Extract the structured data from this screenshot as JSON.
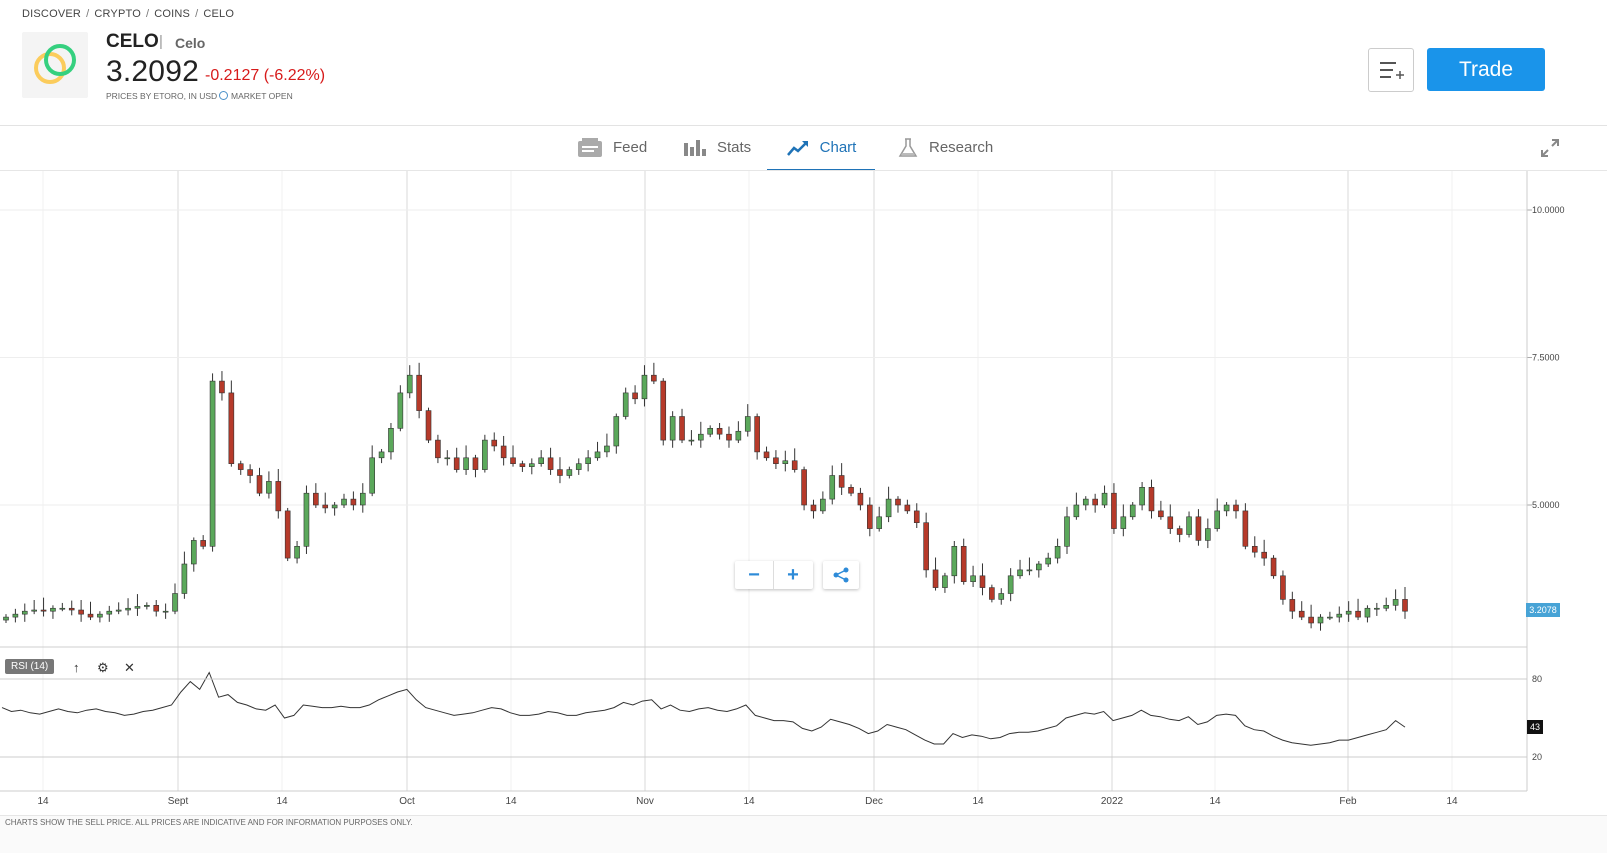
{
  "breadcrumb": [
    "DISCOVER",
    "CRYPTO",
    "COINS",
    "CELO"
  ],
  "instrument": {
    "symbol": "CELO",
    "separator": "|",
    "name": "Celo",
    "price": "3.2092",
    "change": "-0.2127 (-6.22%)",
    "price_note": "PRICES BY ETORO, IN USD",
    "market_status": "MARKET OPEN"
  },
  "actions": {
    "trade_label": "Trade",
    "watchlist_icon": "add-to-watchlist-icon"
  },
  "tabs": [
    {
      "label": "Feed",
      "icon": "feed-icon"
    },
    {
      "label": "Stats",
      "icon": "stats-icon"
    },
    {
      "label": "Chart",
      "icon": "chart-icon",
      "active": true
    },
    {
      "label": "Research",
      "icon": "research-icon"
    }
  ],
  "chart": {
    "rsi_label": "RSI (14)",
    "current_price_label": "3.2078",
    "current_rsi_label": "43",
    "footnote": "CHARTS SHOW THE SELL PRICE. ALL PRICES ARE INDICATIVE AND FOR INFORMATION PURPOSES ONLY.",
    "colors": {
      "up": "#5ba85b",
      "down": "#b63a2a",
      "accent": "#1a94ea",
      "negative": "#d71a1a"
    }
  },
  "chart_data": [
    {
      "type": "candlestick",
      "title": "",
      "x_tick_labels": [
        "14",
        "Sept",
        "14",
        "Oct",
        "14",
        "Nov",
        "14",
        "Dec",
        "14",
        "2022",
        "14",
        "Feb",
        "14"
      ],
      "y_tick_labels": [
        "10.0000",
        "7.5000",
        "5.0000"
      ],
      "ylim": [
        3.0,
        10.5
      ],
      "grid": true,
      "closes": [
        3.1,
        3.15,
        3.2,
        3.22,
        3.2,
        3.25,
        3.25,
        3.22,
        3.15,
        3.1,
        3.15,
        3.2,
        3.22,
        3.25,
        3.28,
        3.3,
        3.2,
        3.2,
        3.5,
        4.0,
        4.4,
        4.3,
        7.1,
        6.9,
        5.7,
        5.6,
        5.5,
        5.2,
        5.4,
        4.9,
        4.1,
        4.3,
        5.2,
        5.0,
        4.95,
        5.0,
        5.1,
        5.0,
        5.2,
        5.8,
        5.9,
        6.3,
        6.9,
        7.2,
        6.6,
        6.1,
        5.8,
        5.8,
        5.6,
        5.8,
        5.6,
        6.1,
        6.0,
        5.8,
        5.7,
        5.65,
        5.7,
        5.8,
        5.6,
        5.5,
        5.6,
        5.7,
        5.8,
        5.9,
        6.0,
        6.5,
        6.9,
        6.8,
        7.2,
        7.1,
        6.1,
        6.5,
        6.1,
        6.1,
        6.2,
        6.3,
        6.2,
        6.1,
        6.25,
        6.5,
        5.9,
        5.8,
        5.7,
        5.75,
        5.6,
        5.0,
        4.9,
        5.1,
        5.5,
        5.3,
        5.2,
        5.0,
        4.6,
        4.8,
        5.1,
        5.0,
        4.9,
        4.7,
        3.9,
        3.6,
        3.8,
        4.3,
        3.7,
        3.8,
        3.6,
        3.4,
        3.5,
        3.8,
        3.9,
        3.9,
        4.0,
        4.1,
        4.3,
        4.8,
        5.0,
        5.1,
        5.0,
        5.2,
        4.6,
        4.8,
        5.0,
        5.3,
        4.9,
        4.8,
        4.6,
        4.5,
        4.8,
        4.4,
        4.6,
        4.9,
        5.0,
        4.9,
        4.3,
        4.2,
        4.1,
        3.8,
        3.4,
        3.2,
        3.1,
        3.0,
        3.1,
        3.1,
        3.15,
        3.2,
        3.1,
        3.25,
        3.25,
        3.3,
        3.4,
        3.2
      ]
    },
    {
      "type": "line",
      "name": "RSI (14)",
      "y_tick_labels": [
        "80",
        "20"
      ],
      "ylim": [
        0,
        100
      ],
      "values": [
        58,
        55,
        56,
        54,
        53,
        55,
        57,
        55,
        54,
        56,
        57,
        55,
        54,
        52,
        53,
        55,
        56,
        58,
        60,
        70,
        78,
        72,
        85,
        66,
        68,
        62,
        60,
        57,
        56,
        60,
        50,
        52,
        60,
        59,
        58,
        58,
        59,
        58,
        58,
        60,
        64,
        67,
        70,
        72,
        64,
        58,
        56,
        54,
        52,
        53,
        54,
        56,
        58,
        57,
        54,
        52,
        52,
        53,
        55,
        54,
        52,
        52,
        54,
        55,
        56,
        58,
        62,
        60,
        63,
        64,
        57,
        60,
        56,
        55,
        57,
        58,
        56,
        55,
        57,
        60,
        52,
        50,
        48,
        48,
        47,
        42,
        40,
        43,
        49,
        47,
        45,
        42,
        38,
        40,
        45,
        43,
        41,
        37,
        33,
        30,
        30,
        38,
        35,
        37,
        36,
        34,
        35,
        38,
        39,
        39,
        40,
        42,
        44,
        50,
        52,
        54,
        53,
        55,
        48,
        50,
        52,
        56,
        52,
        51,
        49,
        48,
        51,
        45,
        47,
        52,
        53,
        52,
        44,
        41,
        40,
        36,
        33,
        31,
        30,
        29,
        30,
        31,
        33,
        33,
        35,
        37,
        39,
        41,
        48,
        43
      ]
    }
  ]
}
